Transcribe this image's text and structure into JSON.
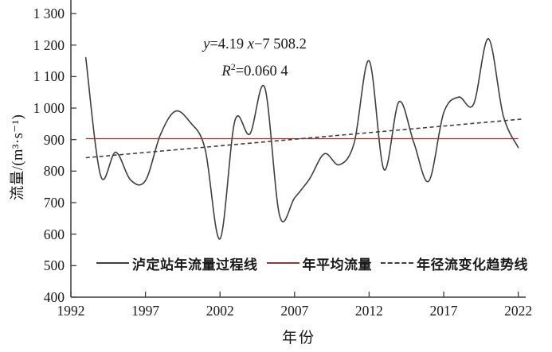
{
  "colors": {
    "curve": "#3f3f3f",
    "mean_line": "#8b3c3c",
    "trend_line": "#3f3f3f",
    "axis": "#3c3c3c",
    "text": "#1a1a1a"
  },
  "chart_data": {
    "type": "line",
    "x": [
      1993,
      1994,
      1995,
      1996,
      1997,
      1998,
      1999,
      2000,
      2001,
      2002,
      2003,
      2004,
      2005,
      2006,
      2007,
      2008,
      2009,
      2010,
      2011,
      2012,
      2013,
      2014,
      2015,
      2016,
      2017,
      2018,
      2019,
      2020,
      2021,
      2022
    ],
    "series": [
      {
        "name": "泸定站年流量过程线",
        "kind": "spline",
        "color": "#3f3f3f",
        "values": [
          1160,
          785,
          860,
          772,
          770,
          915,
          990,
          955,
          870,
          585,
          960,
          918,
          1065,
          658,
          715,
          775,
          855,
          820,
          890,
          1150,
          805,
          1020,
          890,
          768,
          985,
          1035,
          1012,
          1220,
          975,
          875
        ]
      },
      {
        "name": "年平均流量",
        "kind": "hline",
        "color": "#8b3c3c",
        "value": 903
      },
      {
        "name": "年径流变化趋势线",
        "kind": "trendline",
        "color": "#3f3f3f",
        "dashed": true,
        "slope": 4.19,
        "intercept": -7508.2,
        "r_squared": 0.0604
      }
    ],
    "title": "",
    "xlabel": "年份",
    "ylabel": "流量/(m³·s⁻¹)",
    "xlim": [
      1992,
      2022.5
    ],
    "ylim": [
      400,
      1343
    ],
    "x_ticks": [
      "1992",
      "1997",
      "2002",
      "2007",
      "2012",
      "2017",
      "2022"
    ],
    "y_ticks": [
      "400",
      "500",
      "600",
      "700",
      "800",
      "900",
      "1 000",
      "1 100",
      "1 200",
      "1 300"
    ],
    "grid": false,
    "legend_position": "bottom-inside"
  },
  "equation": {
    "var_y": "y",
    "mid": "=4.19 ",
    "var_x": "x",
    "tail": "−7 508.2",
    "r_var": "R",
    "r_sup": "2",
    "r_tail": "=0.060 4"
  },
  "legend": {
    "items": [
      {
        "label": "泸定站年流量过程线",
        "sample": "solid-black"
      },
      {
        "label": "年平均流量",
        "sample": "solid-red"
      },
      {
        "label": "年径流变化趋势线",
        "sample": "dashed-black"
      }
    ]
  }
}
